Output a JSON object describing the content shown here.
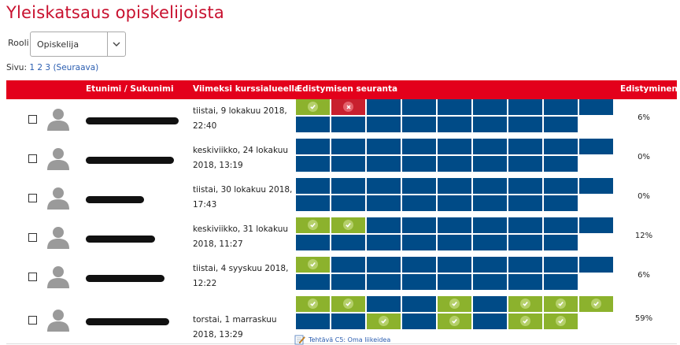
{
  "page": {
    "title": "Yleiskatsaus opiskelijoista"
  },
  "filter": {
    "role_label": "Rooli",
    "role_value": "Opiskelija"
  },
  "pager": {
    "label": "Sivu:",
    "current": "1",
    "pages": [
      "2",
      "3"
    ],
    "next": "(Seuraava)"
  },
  "table": {
    "headers": {
      "name": "Etunimi / Sukunimi",
      "last_access": "Viimeksi kurssialueella",
      "tracking": "Edistymisen seuranta",
      "progress": "Edistyminen"
    },
    "rows": [
      {
        "last_access": "tiistai, 9 lokakuu 2018, 22:40",
        "progress": "6%",
        "top": [
          "done",
          "fail",
          "todo",
          "todo",
          "todo",
          "todo",
          "todo",
          "todo",
          "todo"
        ],
        "bottom": [
          "todo",
          "todo",
          "todo",
          "todo",
          "todo",
          "todo",
          "todo",
          "todo"
        ]
      },
      {
        "last_access": "keskiviikko, 24 lokakuu 2018, 13:19",
        "progress": "0%",
        "top": [
          "todo",
          "todo",
          "todo",
          "todo",
          "todo",
          "todo",
          "todo",
          "todo",
          "todo"
        ],
        "bottom": [
          "todo",
          "todo",
          "todo",
          "todo",
          "todo",
          "todo",
          "todo",
          "todo"
        ]
      },
      {
        "last_access": "tiistai, 30 lokakuu 2018, 17:43",
        "progress": "0%",
        "top": [
          "todo",
          "todo",
          "todo",
          "todo",
          "todo",
          "todo",
          "todo",
          "todo",
          "todo"
        ],
        "bottom": [
          "todo",
          "todo",
          "todo",
          "todo",
          "todo",
          "todo",
          "todo",
          "todo"
        ]
      },
      {
        "last_access": "keskiviikko, 31 lokakuu 2018, 11:27",
        "progress": "12%",
        "top": [
          "done",
          "done",
          "todo",
          "todo",
          "todo",
          "todo",
          "todo",
          "todo",
          "todo"
        ],
        "bottom": [
          "todo",
          "todo",
          "todo",
          "todo",
          "todo",
          "todo",
          "todo",
          "todo"
        ]
      },
      {
        "last_access": "tiistai, 4 syyskuu 2018, 12:22",
        "progress": "6%",
        "top": [
          "done",
          "todo",
          "todo",
          "todo",
          "todo",
          "todo",
          "todo",
          "todo",
          "todo"
        ],
        "bottom": [
          "todo",
          "todo",
          "todo",
          "todo",
          "todo",
          "todo",
          "todo",
          "todo"
        ]
      },
      {
        "last_access": "torstai, 1 marraskuu 2018, 13:29",
        "progress": "59%",
        "top": [
          "done",
          "done",
          "todo",
          "todo",
          "done",
          "todo",
          "done",
          "done",
          "done"
        ],
        "bottom": [
          "todo",
          "todo",
          "done",
          "todo",
          "done",
          "todo",
          "done",
          "done"
        ]
      }
    ]
  },
  "note": {
    "text": "Tehtävä C5: Oma liikeidea",
    "icon": "assignment-pencil-icon"
  },
  "colors": {
    "accent": "#e3001b",
    "done": "#8cb22d",
    "fail": "#c8202e",
    "todo": "#004b87"
  }
}
